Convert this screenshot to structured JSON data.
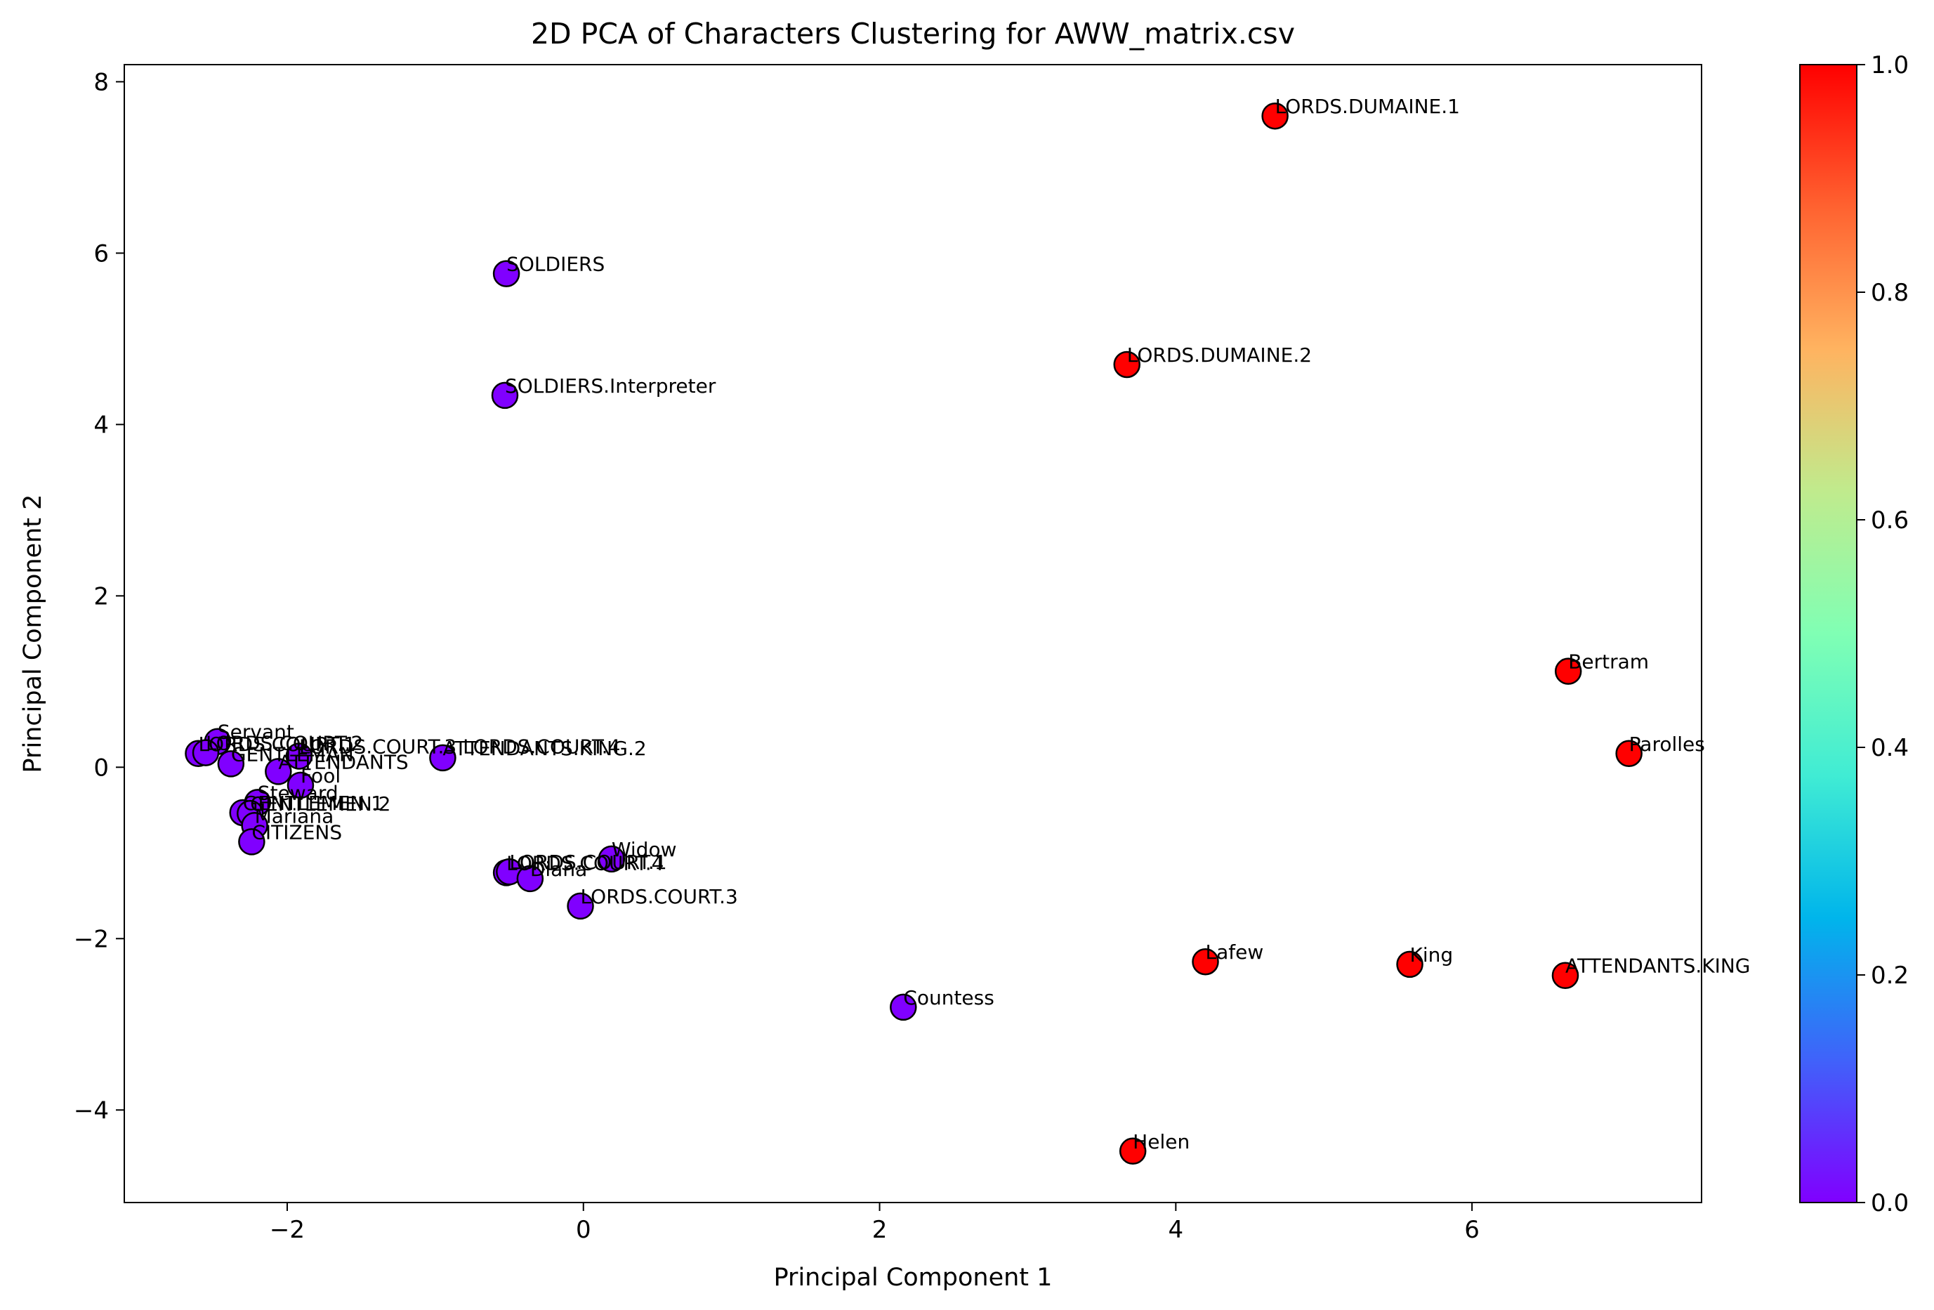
{
  "chart_data": {
    "type": "scatter",
    "title": "2D PCA of Characters Clustering for AWW_matrix.csv",
    "xlabel": "Principal Component 1",
    "ylabel": "Principal Component 2",
    "xlim": [
      -3.1,
      7.55
    ],
    "ylim": [
      -5.08,
      8.2
    ],
    "xticks": [
      -2,
      0,
      2,
      4,
      6
    ],
    "yticks": [
      -4,
      -2,
      0,
      2,
      4,
      6,
      8
    ],
    "grid": false,
    "colorbar": {
      "colormap": "rainbow",
      "range": [
        0,
        1
      ],
      "ticks": [
        0.0,
        0.2,
        0.4,
        0.6,
        0.8,
        1.0
      ],
      "tick_labels": [
        "0.0",
        "0.2",
        "0.4",
        "0.6",
        "0.8",
        "1.0"
      ]
    },
    "colors": {
      "cluster0": "#8000ff",
      "cluster1": "#ff0000",
      "edge": "#000000"
    },
    "points": [
      {
        "label": "LORDS.DUMAINE.1",
        "x": 4.67,
        "y": 7.6,
        "cluster": 1
      },
      {
        "label": "LORDS.DUMAINE.2",
        "x": 3.67,
        "y": 4.7,
        "cluster": 1
      },
      {
        "label": "Bertram",
        "x": 6.65,
        "y": 1.12,
        "cluster": 1
      },
      {
        "label": "Parolles",
        "x": 7.06,
        "y": 0.16,
        "cluster": 1
      },
      {
        "label": "Lafew",
        "x": 4.2,
        "y": -2.27,
        "cluster": 1
      },
      {
        "label": "King",
        "x": 5.58,
        "y": -2.3,
        "cluster": 1
      },
      {
        "label": "ATTENDANTS.KING",
        "x": 6.63,
        "y": -2.43,
        "cluster": 1
      },
      {
        "label": "Helen",
        "x": 3.71,
        "y": -4.48,
        "cluster": 1
      },
      {
        "label": "SOLDIERS",
        "x": -0.52,
        "y": 5.76,
        "cluster": 0
      },
      {
        "label": "SOLDIERS.Interpreter",
        "x": -0.53,
        "y": 4.34,
        "cluster": 0
      },
      {
        "label": "Servant",
        "x": -2.47,
        "y": 0.3,
        "cluster": 0
      },
      {
        "label": "LORDS.COURT.1",
        "x": -2.6,
        "y": 0.16,
        "cluster": 0
      },
      {
        "label": "LORDS.COURT.2",
        "x": -2.55,
        "y": 0.17,
        "cluster": 0
      },
      {
        "label": "ATTENDANTS.KING.2",
        "x": -0.95,
        "y": 0.11,
        "cluster": 0
      },
      {
        "label": "LORDS.COURT.3 LORDS.COURT.4",
        "x": -1.92,
        "y": 0.13,
        "cluster": 0
      },
      {
        "label": "GENTLEMAN",
        "x": -2.38,
        "y": 0.04,
        "cluster": 0
      },
      {
        "label": "ATTENDANTS",
        "x": -2.06,
        "y": -0.05,
        "cluster": 0
      },
      {
        "label": "Fool",
        "x": -1.91,
        "y": -0.21,
        "cluster": 0
      },
      {
        "label": "Steward",
        "x": -2.2,
        "y": -0.41,
        "cluster": 0
      },
      {
        "label": "GENTLEMEN.1",
        "x": -2.3,
        "y": -0.53,
        "cluster": 0
      },
      {
        "label": "GENTLEMEN.2",
        "x": -2.25,
        "y": -0.54,
        "cluster": 0
      },
      {
        "label": "Mariana",
        "x": -2.22,
        "y": -0.68,
        "cluster": 0
      },
      {
        "label": "CITIZENS",
        "x": -2.24,
        "y": -0.87,
        "cluster": 0
      },
      {
        "label": "Widow",
        "x": 0.19,
        "y": -1.07,
        "cluster": 0
      },
      {
        "label": "LORDS.COURT.4",
        "x": -0.52,
        "y": -1.23,
        "cluster": 0
      },
      {
        "label": "LORDS.COURT.1",
        "x": -0.5,
        "y": -1.22,
        "cluster": 0
      },
      {
        "label": "Diana",
        "x": -0.36,
        "y": -1.3,
        "cluster": 0
      },
      {
        "label": "LORDS.COURT.3",
        "x": -0.02,
        "y": -1.62,
        "cluster": 0
      },
      {
        "label": "Countess",
        "x": 2.16,
        "y": -2.8,
        "cluster": 0
      }
    ]
  }
}
